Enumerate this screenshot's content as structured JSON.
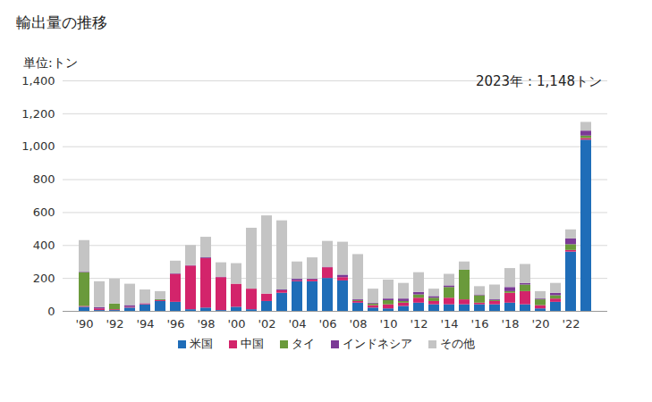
{
  "chart_data": {
    "type": "bar",
    "stacked": true,
    "title": "輸出量の推移",
    "y_label": "単位:トン",
    "annotation": "2023年：1,148トン",
    "categories": [
      "'90",
      null,
      "'92",
      null,
      "'94",
      null,
      "'96",
      null,
      "'98",
      null,
      "'00",
      null,
      "'02",
      null,
      "'04",
      null,
      "'06",
      null,
      "'08",
      null,
      "'10",
      null,
      "'12",
      null,
      "'14",
      null,
      "'16",
      null,
      "'18",
      null,
      "'20",
      null,
      "'22",
      null
    ],
    "series": [
      {
        "name": "米国",
        "color": "#1f6db8",
        "values": [
          25,
          5,
          5,
          20,
          40,
          60,
          55,
          10,
          20,
          5,
          25,
          10,
          60,
          110,
          180,
          180,
          200,
          185,
          50,
          20,
          15,
          30,
          50,
          40,
          40,
          40,
          40,
          40,
          50,
          40,
          15,
          55,
          360,
          1040
        ]
      },
      {
        "name": "中国",
        "color": "#d3246b",
        "values": [
          5,
          10,
          5,
          5,
          5,
          5,
          170,
          265,
          300,
          200,
          140,
          125,
          45,
          15,
          5,
          10,
          65,
          20,
          10,
          15,
          25,
          20,
          30,
          20,
          40,
          30,
          10,
          20,
          60,
          80,
          20,
          20,
          10,
          10
        ]
      },
      {
        "name": "タイ",
        "color": "#6a9a3b",
        "values": [
          205,
          0,
          35,
          0,
          0,
          5,
          0,
          0,
          0,
          0,
          0,
          0,
          0,
          0,
          0,
          0,
          0,
          0,
          5,
          10,
          25,
          10,
          20,
          20,
          65,
          180,
          45,
          5,
          10,
          40,
          35,
          20,
          35,
          15
        ]
      },
      {
        "name": "インドネシア",
        "color": "#7b3a96",
        "values": [
          3,
          8,
          0,
          10,
          2,
          2,
          3,
          3,
          5,
          3,
          0,
          0,
          0,
          5,
          10,
          5,
          3,
          15,
          5,
          5,
          10,
          15,
          15,
          10,
          10,
          0,
          5,
          5,
          25,
          10,
          5,
          15,
          35,
          30
        ]
      },
      {
        "name": "その他",
        "color": "#c4c4c4",
        "values": [
          192,
          157,
          150,
          130,
          83,
          48,
          77,
          122,
          125,
          87,
          125,
          370,
          475,
          420,
          105,
          130,
          157,
          200,
          275,
          85,
          115,
          95,
          120,
          45,
          70,
          50,
          50,
          90,
          115,
          115,
          45,
          60,
          55,
          53
        ]
      }
    ],
    "ylim": [
      0,
      1400
    ],
    "yticks": [
      0,
      200,
      400,
      600,
      800,
      {
        "value": 1000,
        "label": "1,000"
      },
      {
        "value": 1200,
        "label": "1,200"
      },
      {
        "value": 1400,
        "label": "1,400"
      }
    ],
    "grid": true,
    "legend": "bottom"
  }
}
